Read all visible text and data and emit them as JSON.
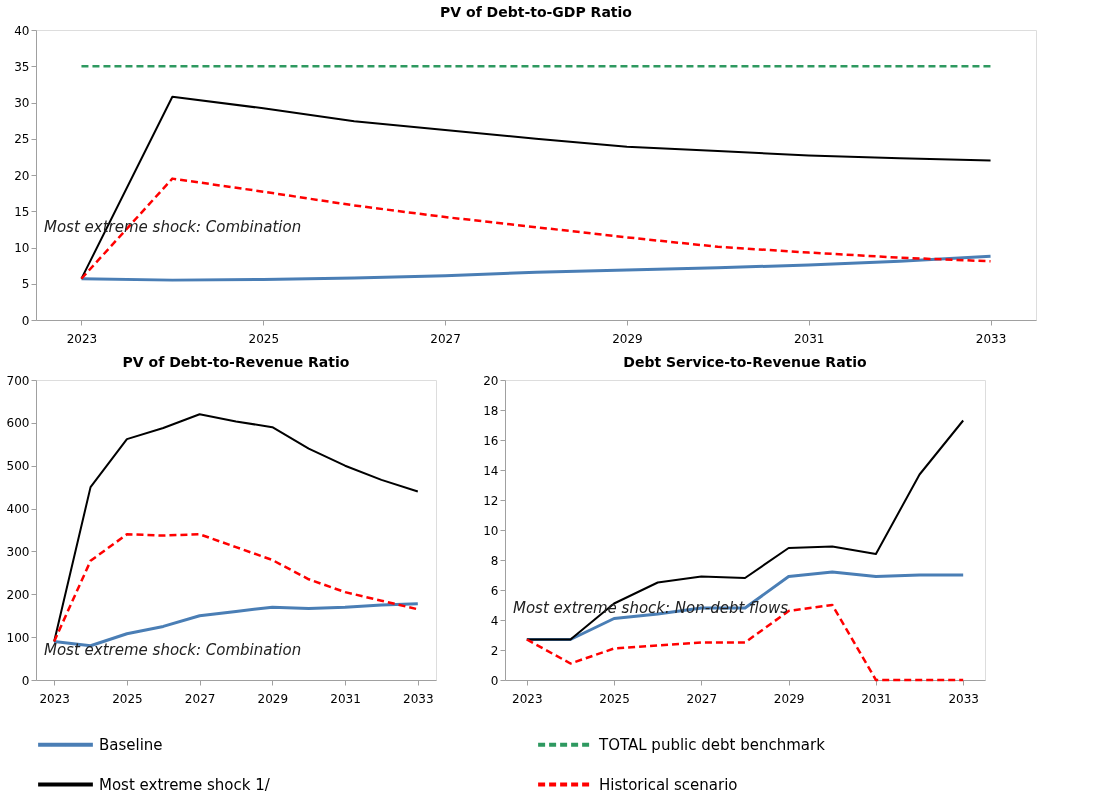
{
  "chart_data": [
    {
      "type": "line",
      "title": "PV of Debt-to-GDP Ratio",
      "x": [
        2023,
        2024,
        2025,
        2026,
        2027,
        2028,
        2029,
        2030,
        2031,
        2032,
        2033
      ],
      "xlim": [
        2022.5,
        2033.5
      ],
      "xticks": [
        2023,
        2025,
        2027,
        2029,
        2031,
        2033
      ],
      "ylim": [
        0,
        40
      ],
      "yticks": [
        0,
        5,
        10,
        15,
        20,
        25,
        30,
        35,
        40
      ],
      "grid": false,
      "legend": "bottom",
      "marker": "none",
      "annotations": [
        "Most extreme shock: Combination"
      ],
      "series": [
        {
          "name": "Baseline",
          "color": "#4a7eb5",
          "line_style": "solid",
          "values": [
            5.7,
            5.5,
            5.6,
            5.8,
            6.1,
            6.6,
            6.9,
            7.2,
            7.6,
            8.1,
            8.8
          ]
        },
        {
          "name": "TOTAL public debt benchmark",
          "color": "#2e9960",
          "line_style": "dashed",
          "values": [
            35,
            35,
            35,
            35,
            35,
            35,
            35,
            35,
            35,
            35,
            35
          ]
        },
        {
          "name": "Most extreme shock 1/",
          "color": "#000000",
          "line_style": "solid",
          "values": [
            5.7,
            30.8,
            29.2,
            27.4,
            26.2,
            25.0,
            23.9,
            23.3,
            22.7,
            22.3,
            22.0
          ]
        },
        {
          "name": "Historical scenario",
          "color": "#ff0000",
          "line_style": "dashed",
          "values": [
            5.7,
            19.5,
            17.7,
            15.8,
            14.2,
            12.8,
            11.4,
            10.1,
            9.3,
            8.6,
            8.1
          ]
        }
      ]
    },
    {
      "type": "line",
      "title": "PV of Debt-to-Revenue Ratio",
      "x": [
        2023,
        2024,
        2025,
        2026,
        2027,
        2028,
        2029,
        2030,
        2031,
        2032,
        2033
      ],
      "xlim": [
        2022.5,
        2033.5
      ],
      "xticks": [
        2023,
        2025,
        2027,
        2029,
        2031,
        2033
      ],
      "ylim": [
        0,
        700
      ],
      "yticks": [
        0,
        100,
        200,
        300,
        400,
        500,
        600,
        700
      ],
      "grid": false,
      "marker": "none",
      "annotations": [
        "Most extreme shock: Combination"
      ],
      "series": [
        {
          "color": "#4a7eb5",
          "line_style": "solid",
          "values": [
            90,
            80,
            108,
            125,
            150,
            160,
            170,
            167,
            170,
            175,
            178
          ]
        },
        {
          "color": "#000000",
          "line_style": "solid",
          "values": [
            90,
            450,
            562,
            588,
            620,
            603,
            590,
            540,
            500,
            467,
            440
          ]
        },
        {
          "color": "#ff0000",
          "line_style": "dashed",
          "values": [
            90,
            278,
            340,
            337,
            340,
            310,
            280,
            235,
            205,
            185,
            165
          ]
        }
      ]
    },
    {
      "type": "line",
      "title": "Debt Service-to-Revenue Ratio",
      "x": [
        2023,
        2024,
        2025,
        2026,
        2027,
        2028,
        2029,
        2030,
        2031,
        2032,
        2033
      ],
      "xlim": [
        2022.5,
        2033.5
      ],
      "xticks": [
        2023,
        2025,
        2027,
        2029,
        2031,
        2033
      ],
      "ylim": [
        0,
        20
      ],
      "yticks": [
        0,
        2,
        4,
        6,
        8,
        10,
        12,
        14,
        16,
        18,
        20
      ],
      "grid": false,
      "marker": "none",
      "annotations": [
        "Most extreme shock: Non-debt flows"
      ],
      "series": [
        {
          "color": "#4a7eb5",
          "line_style": "solid",
          "values": [
            2.7,
            2.7,
            4.1,
            4.4,
            4.8,
            4.8,
            6.9,
            7.2,
            6.9,
            7.0,
            7.0
          ]
        },
        {
          "color": "#000000",
          "line_style": "solid",
          "values": [
            2.7,
            2.7,
            5.1,
            6.5,
            6.9,
            6.8,
            8.8,
            8.9,
            8.4,
            13.7,
            17.3
          ]
        },
        {
          "color": "#ff0000",
          "line_style": "dashed",
          "values": [
            2.7,
            1.1,
            2.1,
            2.3,
            2.5,
            2.5,
            4.6,
            5.0,
            0,
            0,
            0
          ]
        }
      ]
    }
  ]
}
